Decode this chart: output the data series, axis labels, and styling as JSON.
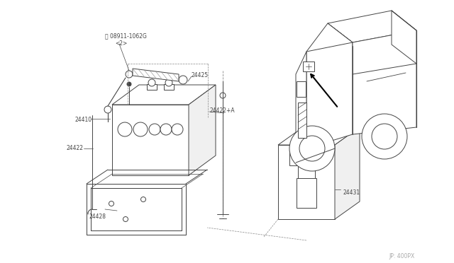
{
  "bg_color": "#ffffff",
  "line_color": "#444444",
  "text_color": "#444444",
  "watermark": "JP: 400PX",
  "parts": {
    "battery_label": "24410",
    "strap_label": "24422",
    "tray_label": "24428",
    "bracket_label": "24431",
    "cable_pos_label": "24425",
    "cable_neg_label": "24422+A",
    "nut_label": "08911-1062G",
    "nut_qty": "<2>"
  }
}
